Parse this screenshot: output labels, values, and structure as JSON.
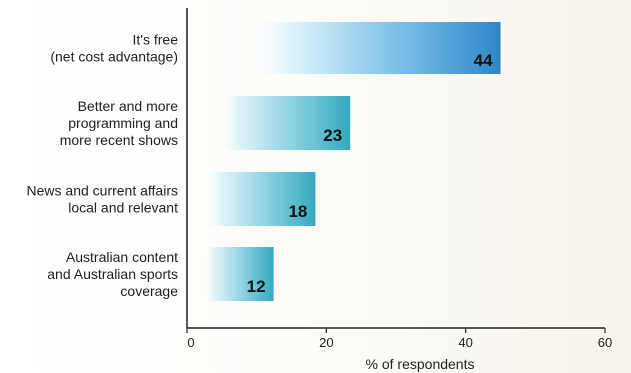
{
  "chart_data": {
    "type": "bar",
    "orientation": "horizontal",
    "categories": [
      [
        "It's free",
        "(net cost advantage)"
      ],
      [
        "Better and more",
        "programming and",
        "more recent shows"
      ],
      [
        "News and current affairs",
        "local and relevant"
      ],
      [
        "Australian content",
        "and Australian sports",
        "coverage"
      ]
    ],
    "values": [
      44,
      23,
      18,
      12
    ],
    "xlabel": "% of respondents",
    "ylabel": "",
    "xlim": [
      0,
      60
    ],
    "xticks": [
      0,
      20,
      40,
      60
    ],
    "grid": false,
    "colors": {
      "bar_light": "#ffffff",
      "bar_mid": "#8fd8e6",
      "bar_dark_top": "#2f86c8",
      "bar_dark_other": "#34a9bf"
    }
  }
}
